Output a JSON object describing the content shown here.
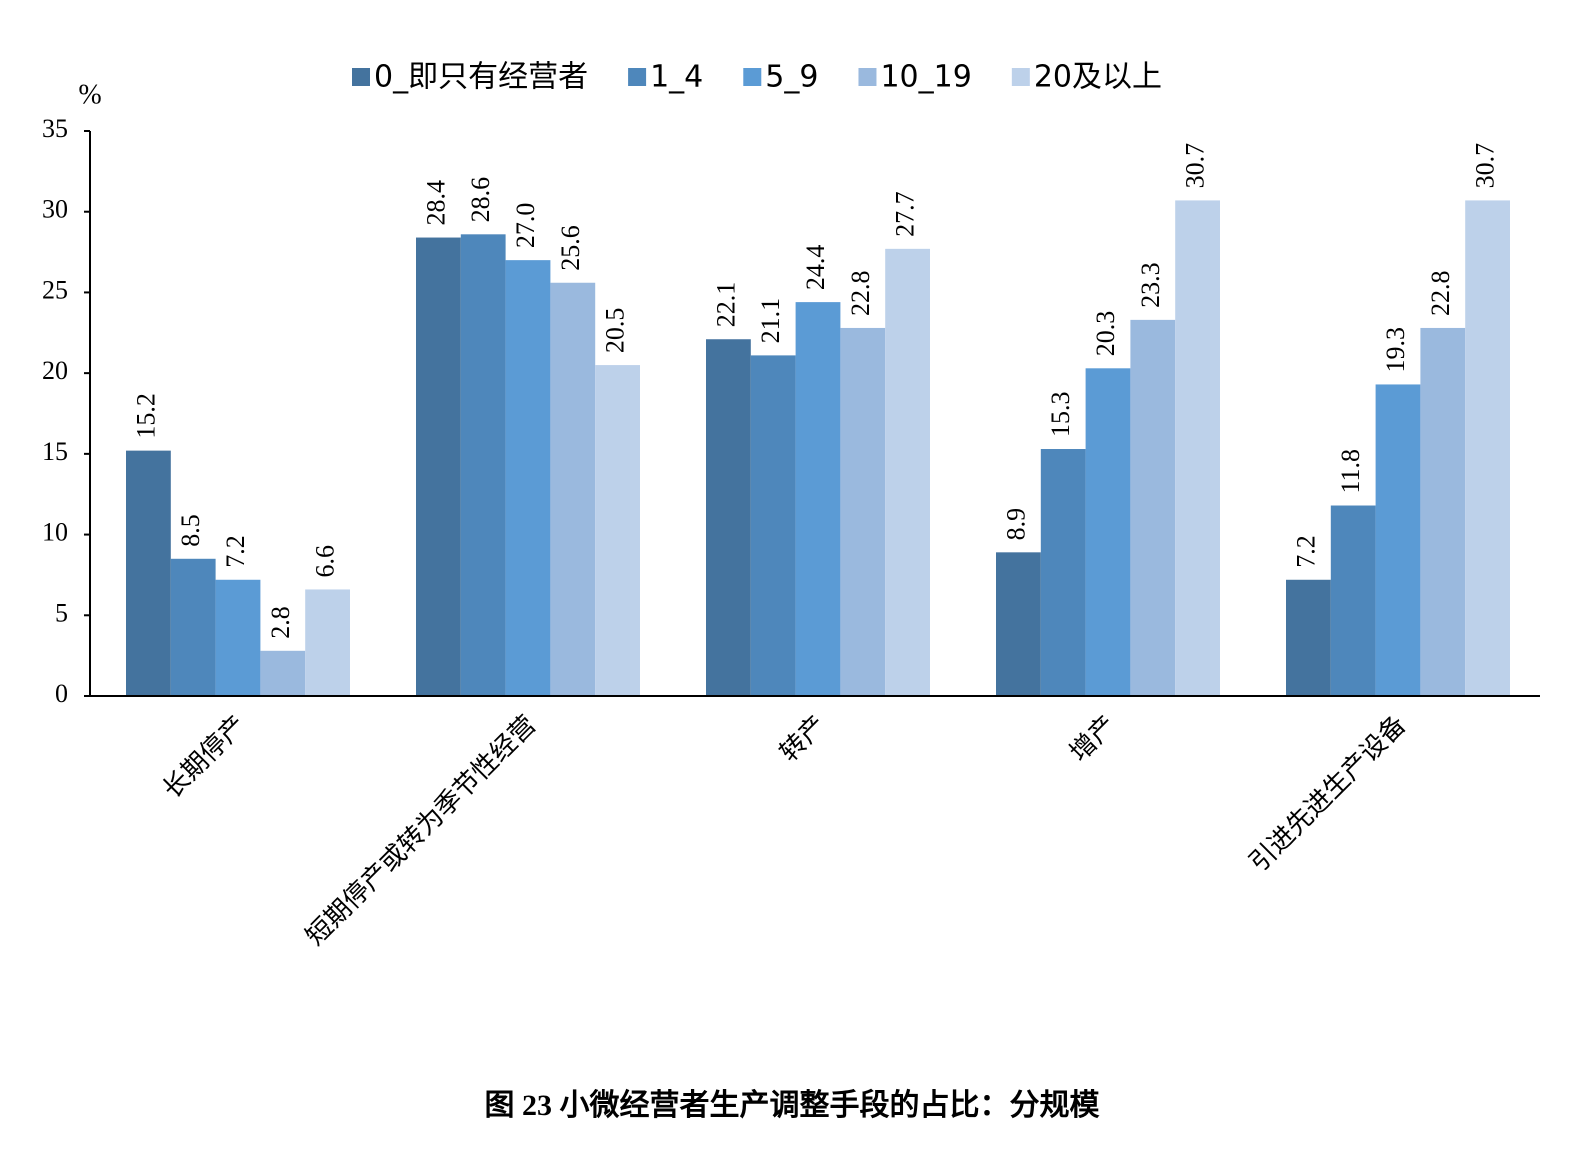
{
  "chart_data": {
    "type": "bar",
    "title": "图 23 小微经营者生产调整手段的占比：分规模",
    "y_label": "%",
    "categories": [
      "长期停产",
      "短期停产或转为季节性经营",
      "转产",
      "增产",
      "引进先进生产设备"
    ],
    "series": [
      {
        "name": "0_即只有经营者",
        "color": "#44739e",
        "values": [
          15.2,
          28.4,
          22.1,
          8.9,
          7.2
        ],
        "value_labels": [
          "15.2",
          "28.4",
          "22.1",
          "8.9",
          "7.2"
        ]
      },
      {
        "name": "1_4",
        "color": "#4e87bb",
        "values": [
          8.5,
          28.6,
          21.1,
          15.3,
          11.8
        ],
        "value_labels": [
          "8.5",
          "28.6",
          "21.1",
          "15.3",
          "11.8"
        ]
      },
      {
        "name": "5_9",
        "color": "#5b9bd5",
        "values": [
          7.2,
          27.0,
          24.4,
          20.3,
          19.3
        ],
        "value_labels": [
          "7.2",
          "27.0",
          "24.4",
          "20.3",
          "19.3"
        ]
      },
      {
        "name": "10_19",
        "color": "#9ab9de",
        "values": [
          2.8,
          25.6,
          22.8,
          23.3,
          22.8
        ],
        "value_labels": [
          "2.8",
          "25.6",
          "22.8",
          "23.3",
          "22.8"
        ]
      },
      {
        "name": "20及以上",
        "color": "#bdd1ea",
        "values": [
          6.6,
          20.5,
          27.7,
          30.7,
          30.7
        ],
        "value_labels": [
          "6.6",
          "20.5",
          "27.7",
          "30.7",
          "30.7"
        ]
      }
    ],
    "ylim": [
      0,
      35
    ],
    "yticks": [
      0,
      5,
      10,
      15,
      20,
      25,
      30,
      35
    ],
    "legend": "top"
  }
}
